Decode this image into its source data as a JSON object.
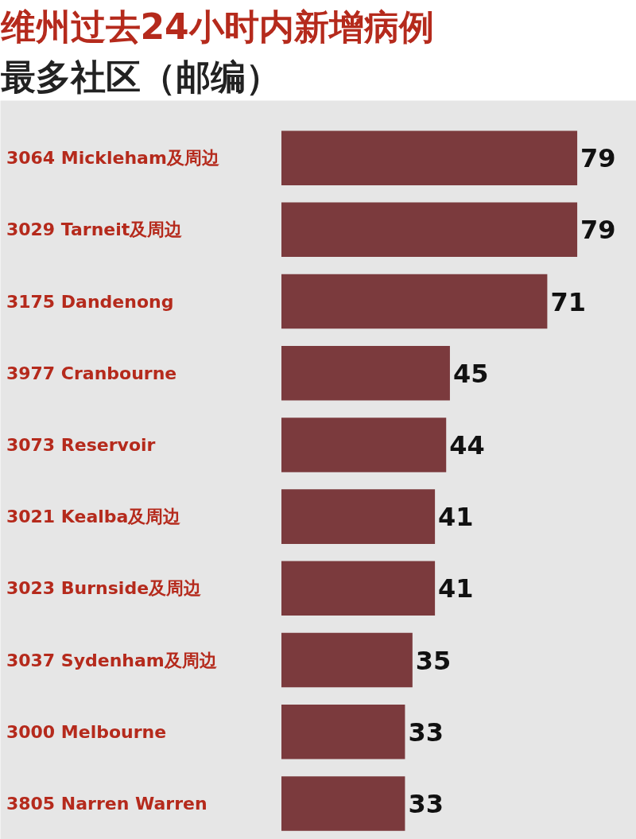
{
  "chart_data": {
    "type": "bar",
    "orientation": "horizontal",
    "title": "维州过去24小时内新增病例",
    "subtitle": "最多社区（邮编）",
    "categories": [
      "3064 Mickleham及周边",
      "3029 Tarneit及周边",
      "3175 Dandenong",
      "3977 Cranbourne",
      "3073 Reservoir",
      "3021 Kealba及周边",
      "3023 Burnside及周边",
      "3037 Sydenham及周边",
      "3000 Melbourne",
      "3805 Narren Warren"
    ],
    "values": [
      79,
      79,
      71,
      45,
      44,
      41,
      41,
      35,
      33,
      33
    ],
    "color": "#7b3a3d",
    "data_labels": true
  }
}
